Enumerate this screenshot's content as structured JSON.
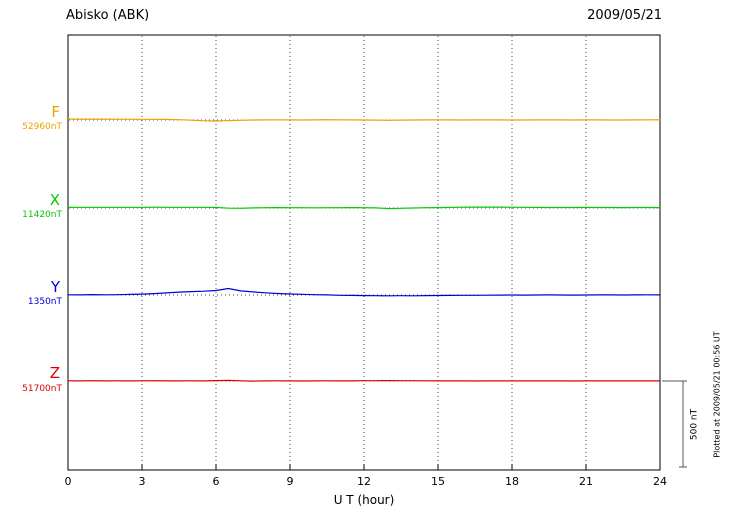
{
  "chart_data": {
    "type": "line",
    "title": "Abisko (ABK)",
    "date": "2009/05/21",
    "xlabel": "U T (hour)",
    "xlim": [
      0,
      24
    ],
    "x_ticks": [
      "0",
      "3",
      "6",
      "9",
      "12",
      "15",
      "18",
      "21",
      "24"
    ],
    "x_start_hour": 0,
    "x_step_hours": 0.5,
    "grid": "dotted-vertical-at-3h",
    "legend_position": "left-outside",
    "scale_bar": {
      "label": "500 nT",
      "nT": 500
    },
    "footnote": "Plotted at 2009/05/21 00:56 UT",
    "series": [
      {
        "name": "F",
        "baseline_label": "52960nT",
        "baseline_nT": 52960,
        "color": "#f0a000",
        "offsets_nT": [
          6.0,
          5.5,
          5.2,
          5.0,
          4.8,
          4.5,
          4.2,
          4.0,
          3.5,
          2.0,
          -1.0,
          -4.5,
          -6.0,
          -4.0,
          -1.5,
          0.0,
          0.8,
          1.0,
          0.5,
          0.2,
          0.8,
          1.5,
          1.0,
          0.3,
          0.0,
          -0.8,
          -1.5,
          -0.8,
          0.0,
          0.5,
          0.8,
          0.3,
          0.0,
          0.5,
          0.8,
          0.6,
          0.2,
          0.0,
          0.5,
          0.6,
          0.3,
          0.0,
          0.4,
          0.6,
          0.2,
          0.0,
          0.5,
          1.0,
          1.5
        ]
      },
      {
        "name": "X",
        "baseline_label": "11420nT",
        "baseline_nT": 11420,
        "color": "#00cc00",
        "offsets_nT": [
          3.5,
          3.8,
          4.0,
          4.2,
          4.0,
          3.8,
          4.0,
          4.5,
          4.2,
          4.0,
          3.8,
          4.0,
          3.5,
          -1.0,
          -2.0,
          0.5,
          2.0,
          2.5,
          2.0,
          1.5,
          1.0,
          1.5,
          2.0,
          2.5,
          2.0,
          0.5,
          -3.5,
          -2.0,
          0.0,
          1.5,
          2.5,
          3.5,
          4.5,
          5.0,
          5.5,
          5.0,
          4.5,
          4.0,
          3.5,
          3.0,
          2.8,
          3.0,
          3.2,
          3.0,
          2.8,
          2.5,
          2.8,
          3.0,
          2.5
        ]
      },
      {
        "name": "Y",
        "baseline_label": "1350nT",
        "baseline_nT": 1350,
        "color": "#0000dd",
        "offsets_nT": [
          1.0,
          0.5,
          2.5,
          1.0,
          2.0,
          3.5,
          5.0,
          8.0,
          12.0,
          17.0,
          20.0,
          22.0,
          26.0,
          38.0,
          24.0,
          18.0,
          13.0,
          9.0,
          6.0,
          4.0,
          2.0,
          0.5,
          -1.5,
          -2.5,
          -3.5,
          -4.0,
          -4.5,
          -4.0,
          -4.5,
          -3.5,
          -3.0,
          -2.5,
          -2.0,
          -1.5,
          -1.0,
          -0.5,
          0.0,
          -0.5,
          0.0,
          0.5,
          0.0,
          -0.5,
          0.0,
          0.5,
          0.5,
          0.0,
          0.5,
          1.0,
          0.5
        ]
      },
      {
        "name": "Z",
        "baseline_label": "51700nT",
        "baseline_nT": 51700,
        "color": "#dd0000",
        "offsets_nT": [
          1.0,
          0.5,
          1.5,
          0.8,
          1.2,
          0.5,
          1.0,
          1.5,
          0.8,
          0.5,
          1.0,
          0.8,
          2.5,
          3.5,
          1.0,
          -0.5,
          0.5,
          1.0,
          0.5,
          0.0,
          0.5,
          1.0,
          0.8,
          0.5,
          1.5,
          2.0,
          2.5,
          2.0,
          1.5,
          1.0,
          0.5,
          0.8,
          0.5,
          0.2,
          0.5,
          0.8,
          0.5,
          0.3,
          0.5,
          0.8,
          0.5,
          0.2,
          0.5,
          0.8,
          0.5,
          0.3,
          0.5,
          0.8,
          0.5
        ]
      }
    ]
  }
}
